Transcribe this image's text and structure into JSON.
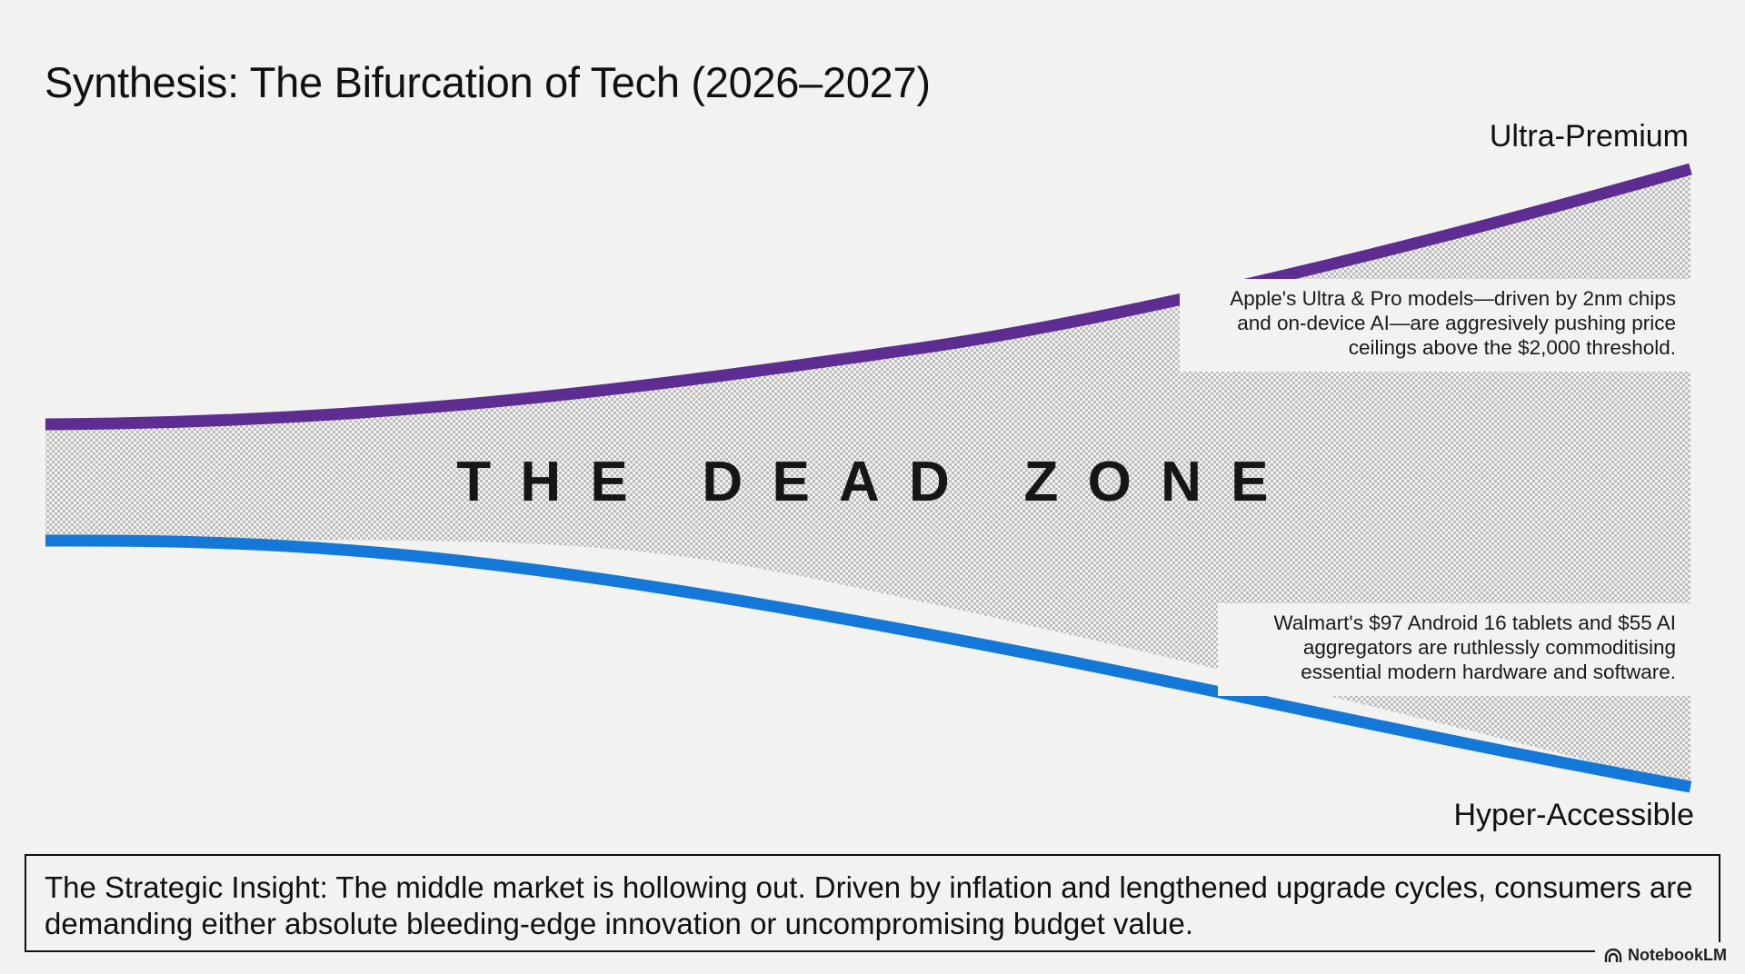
{
  "slide": {
    "title": "Synthesis: The Bifurcation of Tech (2026–2027)"
  },
  "diagram": {
    "top_label": "Ultra-Premium",
    "bottom_label": "Hyper-Accessible",
    "center_label": "THE DEAD ZONE",
    "premium_note": "Apple's Ultra & Pro models—driven by 2nm chips and on-device AI—are aggresively pushing price ceilings above the $2,000 threshold.",
    "accessible_note": "Walmart's $97 Android 16 tablets and $55 AI aggregators are ruthlessly commoditising essential modern hardware and software.",
    "colors": {
      "premium_line": "#5e2d91",
      "accessible_line": "#1478d8",
      "background": "#f2f2f0",
      "dead_zone_pattern": "#b9b9b9"
    }
  },
  "insight": {
    "text": "The Strategic Insight: The middle market is hollowing out. Driven by inflation and lengthened upgrade cycles, consumers are demanding either absolute bleeding-edge innovation or uncompromising budget value."
  },
  "branding": {
    "icon": "notebooklm-icon",
    "label": "NotebookLM"
  }
}
